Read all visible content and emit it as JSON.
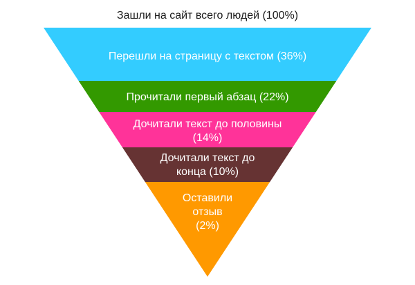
{
  "diagram": {
    "title": "Зашли на сайт всего людей (100%)",
    "stages": [
      {
        "label_lines": [
          "Перешли на страницу с текстом (36%)"
        ],
        "color": "#33ccff"
      },
      {
        "label_lines": [
          "Прочитали первый абзац (22%)"
        ],
        "color": "#339900"
      },
      {
        "label_lines": [
          "Дочитали текст до половины",
          "(14%)"
        ],
        "color": "#ff3399"
      },
      {
        "label_lines": [
          "Дочитали текст до",
          "конца (10%)"
        ],
        "color": "#663333"
      },
      {
        "label_lines": [
          "Оставили",
          "отзыв",
          "(2%)"
        ],
        "color": "#ff9900"
      }
    ]
  }
}
